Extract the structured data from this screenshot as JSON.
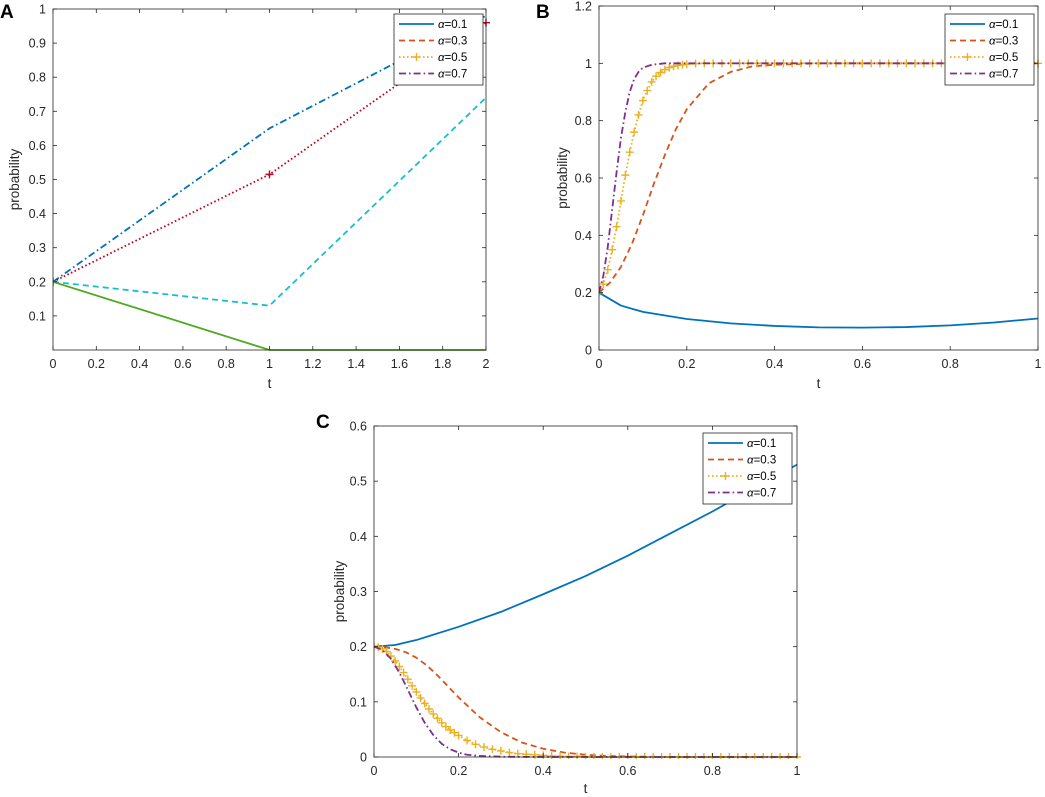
{
  "chart_data": [
    {
      "panel": "A",
      "type": "line",
      "xlabel": "t",
      "ylabel": "probability",
      "xlim": [
        0,
        2
      ],
      "ylim": [
        0,
        1
      ],
      "xticks": [
        0,
        0.2,
        0.4,
        0.6,
        0.8,
        1,
        1.2,
        1.4,
        1.6,
        1.8,
        2
      ],
      "xtick_labels": [
        "0",
        "0.2",
        "0.4",
        "0.6",
        "0.8",
        "1",
        "1.2",
        "1.4",
        "1.6",
        "1.8",
        "2"
      ],
      "yticks": [
        0.1,
        0.2,
        0.3,
        0.4,
        0.5,
        0.6,
        0.7,
        0.8,
        0.9,
        1
      ],
      "ytick_labels": [
        "0.1",
        "0.2",
        "0.3",
        "0.4",
        "0.5",
        "0.6",
        "0.7",
        "0.8",
        "0.9",
        "1"
      ],
      "legend_position": "top-right",
      "legend": [
        {
          "greek": "α",
          "label": "=0.1",
          "color": "#0072BD",
          "dash": "solid",
          "marker": "none"
        },
        {
          "greek": "α",
          "label": "=0.3",
          "color": "#D95319",
          "dash": "dashed",
          "marker": "none"
        },
        {
          "greek": "α",
          "label": "=0.5",
          "color": "#EDB120",
          "dash": "dotted",
          "marker": "plus"
        },
        {
          "greek": "α",
          "label": "=0.7",
          "color": "#7E2F8E",
          "dash": "dashdot",
          "marker": "none"
        }
      ],
      "series": [
        {
          "name": "blue dash-dot",
          "color": "#0072BD",
          "dash": "dashdot",
          "marker": "none",
          "x": [
            0,
            1,
            2
          ],
          "y": [
            0.2,
            0.65,
            0.98
          ]
        },
        {
          "name": "red dotted",
          "color": "#C00020",
          "dash": "dotted",
          "marker": "plus",
          "x": [
            0,
            1,
            2
          ],
          "y": [
            0.2,
            0.515,
            0.96
          ]
        },
        {
          "name": "cyan dashed",
          "color": "#17BECF",
          "dash": "dashed",
          "marker": "none",
          "x": [
            0,
            1,
            2
          ],
          "y": [
            0.2,
            0.13,
            0.74
          ]
        },
        {
          "name": "green solid",
          "color": "#4DAA1E",
          "dash": "solid",
          "marker": "none",
          "x": [
            0,
            1,
            2
          ],
          "y": [
            0.2,
            0.0,
            0.0
          ]
        }
      ]
    },
    {
      "panel": "B",
      "type": "line",
      "xlabel": "t",
      "ylabel": "probability",
      "xlim": [
        0,
        1
      ],
      "ylim": [
        0,
        1.2
      ],
      "xticks": [
        0,
        0.2,
        0.4,
        0.6,
        0.8,
        1
      ],
      "xtick_labels": [
        "0",
        "0.2",
        "0.4",
        "0.6",
        "0.8",
        "1"
      ],
      "yticks": [
        0,
        0.2,
        0.4,
        0.6,
        0.8,
        1,
        1.2
      ],
      "ytick_labels": [
        "0",
        "0.2",
        "0.4",
        "0.6",
        "0.8",
        "1",
        "1.2"
      ],
      "legend_position": "top-right",
      "legend": [
        {
          "greek": "α",
          "label": "=0.1",
          "color": "#0072BD",
          "dash": "solid",
          "marker": "none"
        },
        {
          "greek": "α",
          "label": "=0.3",
          "color": "#D95319",
          "dash": "dashed",
          "marker": "none"
        },
        {
          "greek": "α",
          "label": "=0.5",
          "color": "#EDB120",
          "dash": "dotted",
          "marker": "plus"
        },
        {
          "greek": "α",
          "label": "=0.7",
          "color": "#7E2F8E",
          "dash": "dashdot",
          "marker": "none"
        }
      ],
      "series": [
        {
          "name": "α=0.1",
          "color": "#0072BD",
          "dash": "solid",
          "marker": "none",
          "x": [
            0,
            0.05,
            0.1,
            0.2,
            0.3,
            0.4,
            0.5,
            0.6,
            0.7,
            0.8,
            0.9,
            1.0
          ],
          "y": [
            0.2,
            0.155,
            0.133,
            0.108,
            0.093,
            0.084,
            0.079,
            0.078,
            0.08,
            0.086,
            0.096,
            0.11
          ]
        },
        {
          "name": "α=0.3",
          "color": "#D95319",
          "dash": "dashed",
          "marker": "none",
          "x": [
            0,
            0.025,
            0.05,
            0.075,
            0.1,
            0.125,
            0.15,
            0.175,
            0.2,
            0.25,
            0.3,
            0.35,
            0.4,
            0.5,
            0.6,
            0.8,
            1.0
          ],
          "y": [
            0.2,
            0.235,
            0.29,
            0.37,
            0.47,
            0.58,
            0.68,
            0.77,
            0.84,
            0.93,
            0.97,
            0.99,
            0.995,
            1.0,
            1.0,
            1.0,
            1.0
          ]
        },
        {
          "name": "α=0.5",
          "color": "#EDB120",
          "dash": "dotted",
          "marker": "plus",
          "x": [
            0,
            0.01,
            0.02,
            0.03,
            0.04,
            0.05,
            0.06,
            0.07,
            0.08,
            0.09,
            0.1,
            0.11,
            0.12,
            0.13,
            0.14,
            0.15,
            0.16,
            0.17,
            0.18,
            0.19,
            0.2,
            0.22,
            0.24,
            0.26,
            0.28,
            0.3,
            0.32,
            0.34,
            0.36,
            0.38,
            0.4,
            0.42,
            0.44,
            0.46,
            0.48,
            0.5,
            0.52,
            0.54,
            0.56,
            0.58,
            0.6,
            0.62,
            0.64,
            0.66,
            0.68,
            0.7,
            0.72,
            0.74,
            0.76,
            0.78,
            0.8,
            0.82,
            0.84,
            0.86,
            0.88,
            0.9,
            0.92,
            0.94,
            0.96,
            0.98,
            1.0
          ],
          "y": [
            0.2,
            0.23,
            0.28,
            0.35,
            0.43,
            0.52,
            0.61,
            0.69,
            0.76,
            0.82,
            0.87,
            0.905,
            0.935,
            0.955,
            0.968,
            0.978,
            0.985,
            0.99,
            0.993,
            0.995,
            0.997,
            0.999,
            1,
            1,
            1,
            1,
            1,
            1,
            1,
            1,
            1,
            1,
            1,
            1,
            1,
            1,
            1,
            1,
            1,
            1,
            1,
            1,
            1,
            1,
            1,
            1,
            1,
            1,
            1,
            1,
            1,
            1,
            1,
            1,
            1,
            1,
            1,
            1,
            1,
            1,
            1
          ]
        },
        {
          "name": "α=0.7",
          "color": "#7E2F8E",
          "dash": "dashdot",
          "marker": "none",
          "x": [
            0,
            0.01,
            0.02,
            0.03,
            0.04,
            0.05,
            0.06,
            0.07,
            0.08,
            0.09,
            0.1,
            0.12,
            0.15,
            0.2,
            0.3,
            0.5,
            1.0
          ],
          "y": [
            0.2,
            0.26,
            0.36,
            0.49,
            0.62,
            0.74,
            0.83,
            0.9,
            0.945,
            0.97,
            0.985,
            0.995,
            1.0,
            1.0,
            1.0,
            1.0,
            1.0
          ]
        }
      ]
    },
    {
      "panel": "C",
      "type": "line",
      "xlabel": "t",
      "ylabel": "probability",
      "xlim": [
        0,
        1
      ],
      "ylim": [
        0,
        0.6
      ],
      "xticks": [
        0,
        0.2,
        0.4,
        0.6,
        0.8,
        1
      ],
      "xtick_labels": [
        "0",
        "0.2",
        "0.4",
        "0.6",
        "0.8",
        "1"
      ],
      "yticks": [
        0,
        0.1,
        0.2,
        0.3,
        0.4,
        0.5,
        0.6
      ],
      "ytick_labels": [
        "0",
        "0.1",
        "0.2",
        "0.3",
        "0.4",
        "0.5",
        "0.6"
      ],
      "legend_position": "top-right",
      "legend": [
        {
          "greek": "α",
          "label": "=0.1",
          "color": "#0072BD",
          "dash": "solid",
          "marker": "none"
        },
        {
          "greek": "α",
          "label": "=0.3",
          "color": "#D95319",
          "dash": "dashed",
          "marker": "none"
        },
        {
          "greek": "α",
          "label": "=0.5",
          "color": "#EDB120",
          "dash": "dotted",
          "marker": "plus"
        },
        {
          "greek": "α",
          "label": "=0.7",
          "color": "#7E2F8E",
          "dash": "dashdot",
          "marker": "none"
        }
      ],
      "series": [
        {
          "name": "α=0.1",
          "color": "#0072BD",
          "dash": "solid",
          "marker": "none",
          "x": [
            0,
            0.05,
            0.1,
            0.2,
            0.3,
            0.4,
            0.5,
            0.6,
            0.7,
            0.8,
            0.9,
            1.0
          ],
          "y": [
            0.2,
            0.203,
            0.212,
            0.236,
            0.263,
            0.295,
            0.328,
            0.365,
            0.405,
            0.445,
            0.488,
            0.53
          ]
        },
        {
          "name": "α=0.3",
          "color": "#D95319",
          "dash": "dashed",
          "marker": "none",
          "x": [
            0,
            0.025,
            0.05,
            0.075,
            0.1,
            0.125,
            0.15,
            0.175,
            0.2,
            0.25,
            0.3,
            0.35,
            0.4,
            0.45,
            0.5,
            0.55,
            0.6,
            0.7,
            0.8,
            1.0
          ],
          "y": [
            0.2,
            0.199,
            0.196,
            0.19,
            0.18,
            0.166,
            0.148,
            0.128,
            0.108,
            0.072,
            0.045,
            0.026,
            0.015,
            0.008,
            0.004,
            0.002,
            0.001,
            0.0,
            0.0,
            0.0
          ]
        },
        {
          "name": "α=0.5",
          "color": "#EDB120",
          "dash": "dotted",
          "marker": "plus",
          "x": [
            0,
            0.01,
            0.02,
            0.03,
            0.04,
            0.05,
            0.06,
            0.07,
            0.08,
            0.09,
            0.1,
            0.11,
            0.12,
            0.13,
            0.14,
            0.15,
            0.16,
            0.17,
            0.18,
            0.19,
            0.2,
            0.22,
            0.24,
            0.26,
            0.28,
            0.3,
            0.32,
            0.34,
            0.36,
            0.38,
            0.4,
            0.42,
            0.44,
            0.46,
            0.48,
            0.5,
            0.52,
            0.54,
            0.56,
            0.58,
            0.6,
            0.62,
            0.64,
            0.66,
            0.68,
            0.7,
            0.72,
            0.74,
            0.76,
            0.78,
            0.8,
            0.82,
            0.84,
            0.86,
            0.88,
            0.9,
            0.92,
            0.94,
            0.96,
            0.98,
            1.0
          ],
          "y": [
            0.2,
            0.199,
            0.196,
            0.191,
            0.183,
            0.174,
            0.164,
            0.153,
            0.141,
            0.129,
            0.118,
            0.107,
            0.097,
            0.087,
            0.078,
            0.07,
            0.062,
            0.055,
            0.049,
            0.044,
            0.039,
            0.03,
            0.023,
            0.018,
            0.014,
            0.011,
            0.008,
            0.006,
            0.005,
            0.004,
            0.003,
            0.002,
            0.0015,
            0.001,
            0.001,
            0.0005,
            0,
            0,
            0,
            0,
            0,
            0,
            0,
            0,
            0,
            0,
            0,
            0,
            0,
            0,
            0,
            0,
            0,
            0,
            0,
            0,
            0,
            0,
            0,
            0,
            0
          ]
        },
        {
          "name": "α=0.7",
          "color": "#7E2F8E",
          "dash": "dashdot",
          "marker": "none",
          "x": [
            0,
            0.02,
            0.04,
            0.06,
            0.08,
            0.1,
            0.12,
            0.14,
            0.16,
            0.18,
            0.2,
            0.22,
            0.25,
            0.3,
            0.4,
            0.6,
            1.0
          ],
          "y": [
            0.2,
            0.194,
            0.178,
            0.153,
            0.122,
            0.09,
            0.062,
            0.04,
            0.024,
            0.014,
            0.008,
            0.004,
            0.002,
            0.0005,
            0.0,
            0.0,
            0.0
          ]
        }
      ]
    }
  ]
}
